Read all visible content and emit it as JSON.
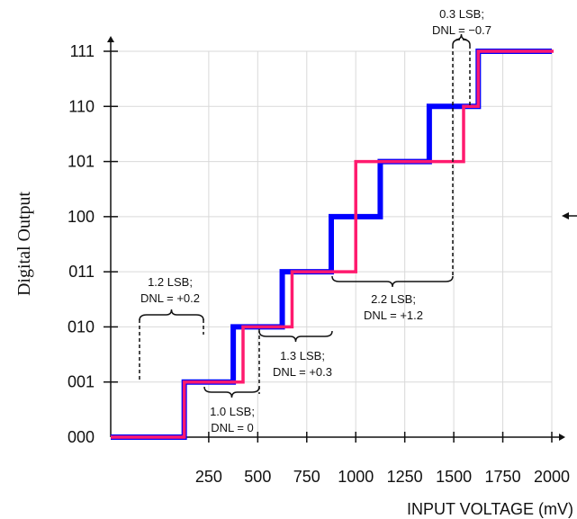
{
  "chart_data": {
    "type": "line",
    "title": "",
    "xlabel": "INPUT VOLTAGE (mV)",
    "ylabel": "Digital Output",
    "xlim": [
      -250,
      2000
    ],
    "ylim": [
      0,
      7
    ],
    "x_ticks": [
      250,
      500,
      750,
      1000,
      1250,
      1500,
      1750,
      2000
    ],
    "x_tick_labels": [
      "250",
      "500",
      "750",
      "1000",
      "1250",
      "1500",
      "1750",
      "2000"
    ],
    "y_tick_labels": [
      "000",
      "001",
      "010",
      "011",
      "100",
      "101",
      "110",
      "111"
    ],
    "grid": true,
    "series": [
      {
        "name": "",
        "color": "#0000ff",
        "transitions_mV": [
          125,
          375,
          625,
          875,
          1125,
          1375,
          1625
        ]
      },
      {
        "name": "",
        "color": "#ff1a6e",
        "transitions_mV": [
          125,
          425,
          675,
          1000,
          1000,
          1550,
          1625
        ]
      }
    ],
    "annotations": [
      {
        "line1": "1.2 LSB;",
        "line2": "DNL = +0.2"
      },
      {
        "line1": "1.0 LSB;",
        "line2": "DNL = 0"
      },
      {
        "line1": "1.3 LSB;",
        "line2": "DNL = +0.3"
      },
      {
        "line1": "2.2 LSB;",
        "line2": "DNL = +1.2"
      },
      {
        "line1": "0.3 LSB;",
        "line2": "DNL = −0.7"
      }
    ]
  }
}
